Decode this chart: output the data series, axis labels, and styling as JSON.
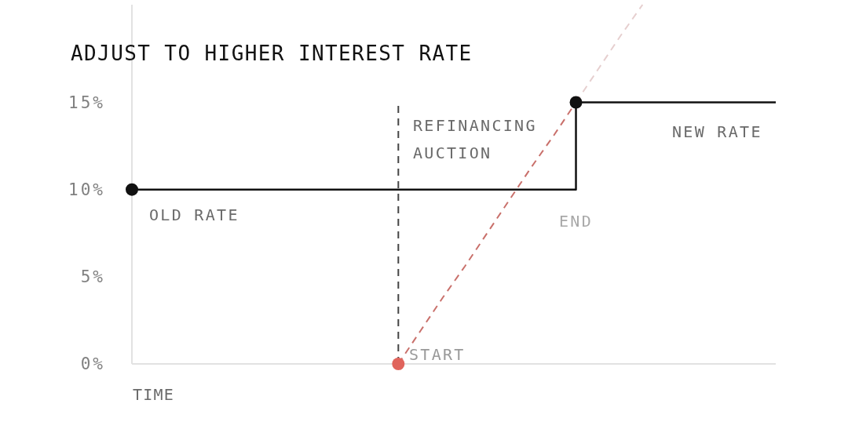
{
  "chart_data": {
    "type": "line",
    "title": "ADJUST TO HIGHER INTEREST RATE",
    "xlabel": "TIME",
    "categories": [
      null,
      null,
      null,
      null,
      null,
      null,
      null,
      null,
      null,
      null,
      null,
      null,
      null,
      null,
      null,
      null,
      null,
      null,
      null,
      null,
      null,
      null,
      null,
      null,
      null,
      null,
      null,
      null,
      null,
      null
    ],
    "ylim": [
      0,
      20.6
    ],
    "yticks": [
      {
        "value": 0,
        "label": "0%"
      },
      {
        "value": 5,
        "label": "5%"
      },
      {
        "value": 10,
        "label": "10%"
      },
      {
        "value": 15,
        "label": "15%"
      }
    ],
    "tick_labels": "y",
    "marker": "none",
    "series": [
      {
        "type": "step",
        "color": "#111111",
        "values": [
          10,
          10,
          10,
          10,
          10,
          10,
          10,
          10,
          10,
          10,
          10,
          10,
          10,
          10,
          10,
          10,
          10,
          10,
          10,
          10,
          15,
          15,
          15,
          15,
          15,
          15,
          15,
          15,
          15,
          15
        ]
      },
      {
        "color": "#c9706b",
        "line_style": "dashed",
        "values": [
          null,
          null,
          null,
          null,
          null,
          null,
          null,
          null,
          null,
          null,
          null,
          null,
          0,
          1.9,
          3.8,
          5.6,
          7.5,
          9.4,
          11.3,
          13.1,
          15,
          null,
          null,
          null,
          null,
          null,
          null,
          null,
          null,
          null
        ]
      },
      {
        "color": "#e6cfcf",
        "line_style": "dashed",
        "values": [
          null,
          null,
          null,
          null,
          null,
          null,
          null,
          null,
          null,
          null,
          null,
          null,
          null,
          null,
          null,
          null,
          null,
          null,
          null,
          null,
          15,
          16.9,
          18.8,
          20.6,
          null,
          null,
          null,
          null,
          null,
          null
        ]
      },
      {
        "type": "scatter",
        "color": "#111111",
        "marker": "circle",
        "values": [
          10,
          null,
          null,
          null,
          null,
          null,
          null,
          null,
          null,
          null,
          null,
          null,
          null,
          null,
          null,
          null,
          null,
          null,
          null,
          null,
          15,
          null,
          null,
          null,
          null,
          null,
          null,
          null,
          null,
          null
        ]
      },
      {
        "type": "scatter",
        "color": "#e0645c",
        "marker": "circle",
        "values": [
          null,
          null,
          null,
          null,
          null,
          null,
          null,
          null,
          null,
          null,
          null,
          null,
          0,
          null,
          null,
          null,
          null,
          null,
          null,
          null,
          null,
          null,
          null,
          null,
          null,
          null,
          null,
          null,
          null,
          null
        ]
      }
    ],
    "annotations": [
      "OLD RATE",
      "REFINANCING AUCTION",
      "NEW RATE",
      "END",
      "START"
    ]
  }
}
